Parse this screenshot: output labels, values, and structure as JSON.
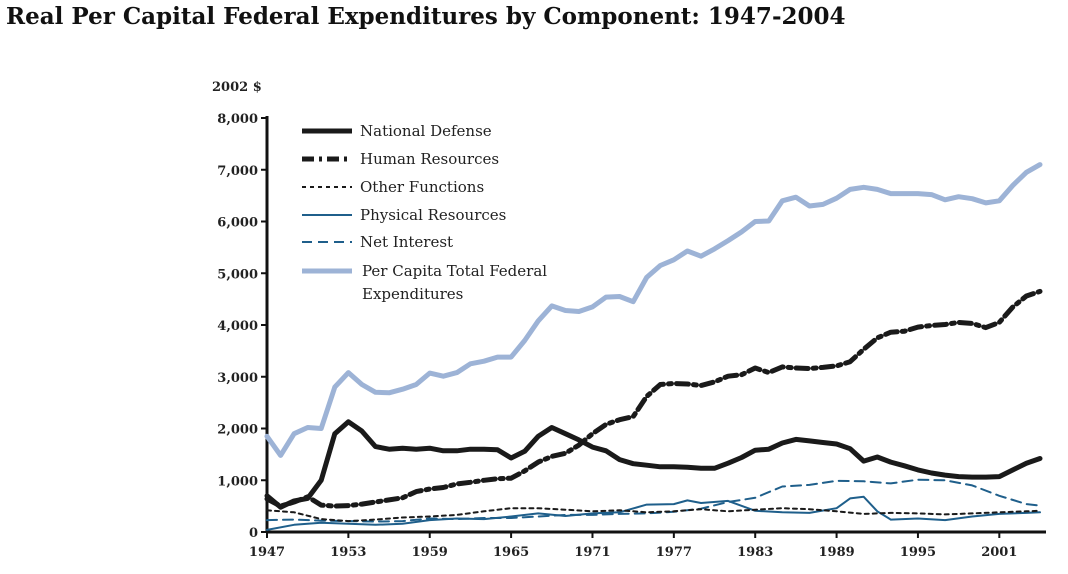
{
  "chart_data": {
    "type": "line",
    "title": "Real Per Capital Federal Expenditures by Component: 1947-2004",
    "y_unit": "2002 $",
    "xlim": [
      1947,
      2004
    ],
    "ylim": [
      0,
      8000
    ],
    "x_ticks": [
      1947,
      1953,
      1959,
      1965,
      1971,
      1977,
      1983,
      1989,
      1995,
      2001
    ],
    "y_ticks": [
      0,
      1000,
      2000,
      3000,
      4000,
      5000,
      6000,
      7000,
      8000
    ],
    "y_tick_labels": [
      "0",
      "1,000",
      "2,000",
      "3,000",
      "4,000",
      "5,000",
      "6,000",
      "7,000",
      "8,000"
    ],
    "grid": false,
    "legend_position": "top-left",
    "series": [
      {
        "name": "National Defense",
        "color": "#1a1a1a",
        "style": "solid-thick",
        "x": [
          1947,
          1948,
          1949,
          1950,
          1951,
          1952,
          1953,
          1954,
          1955,
          1956,
          1957,
          1958,
          1959,
          1960,
          1961,
          1962,
          1963,
          1964,
          1965,
          1966,
          1967,
          1968,
          1969,
          1970,
          1971,
          1972,
          1973,
          1974,
          1975,
          1976,
          1977,
          1978,
          1979,
          1980,
          1981,
          1982,
          1983,
          1984,
          1985,
          1986,
          1987,
          1988,
          1989,
          1990,
          1991,
          1992,
          1993,
          1994,
          1995,
          1996,
          1997,
          1998,
          1999,
          2000,
          2001,
          2002,
          2003,
          2004
        ],
        "values": [
          700,
          480,
          600,
          650,
          1000,
          1900,
          2130,
          1950,
          1650,
          1600,
          1620,
          1600,
          1620,
          1570,
          1570,
          1600,
          1600,
          1590,
          1430,
          1560,
          1850,
          2020,
          1900,
          1780,
          1640,
          1570,
          1400,
          1320,
          1290,
          1260,
          1260,
          1250,
          1230,
          1230,
          1330,
          1440,
          1580,
          1600,
          1720,
          1790,
          1760,
          1730,
          1700,
          1610,
          1370,
          1450,
          1350,
          1280,
          1200,
          1140,
          1100,
          1070,
          1060,
          1060,
          1070,
          1200,
          1330,
          1420
        ]
      },
      {
        "name": "Human Resources",
        "color": "#1a1a1a",
        "style": "dash-dot-thick",
        "x": [
          1947,
          1948,
          1949,
          1950,
          1951,
          1952,
          1953,
          1954,
          1955,
          1956,
          1957,
          1958,
          1959,
          1960,
          1961,
          1962,
          1963,
          1964,
          1965,
          1966,
          1967,
          1968,
          1969,
          1970,
          1971,
          1972,
          1973,
          1974,
          1975,
          1976,
          1977,
          1978,
          1979,
          1980,
          1981,
          1982,
          1983,
          1984,
          1985,
          1986,
          1987,
          1988,
          1989,
          1990,
          1991,
          1992,
          1993,
          1994,
          1995,
          1996,
          1997,
          1998,
          1999,
          2000,
          2001,
          2002,
          2003,
          2004
        ],
        "values": [
          640,
          500,
          580,
          680,
          520,
          500,
          510,
          540,
          580,
          620,
          660,
          780,
          830,
          860,
          930,
          960,
          1000,
          1030,
          1040,
          1180,
          1350,
          1460,
          1520,
          1680,
          1900,
          2080,
          2170,
          2230,
          2620,
          2850,
          2870,
          2860,
          2830,
          2900,
          3010,
          3040,
          3170,
          3080,
          3190,
          3170,
          3160,
          3180,
          3210,
          3290,
          3530,
          3750,
          3860,
          3880,
          3960,
          3990,
          4010,
          4050,
          4030,
          3950,
          4050,
          4350,
          4560,
          4650
        ]
      },
      {
        "name": "Other Functions",
        "color": "#1a1a1a",
        "style": "dotted",
        "x": [
          1947,
          1949,
          1951,
          1953,
          1955,
          1957,
          1959,
          1961,
          1963,
          1965,
          1967,
          1969,
          1971,
          1973,
          1975,
          1977,
          1979,
          1981,
          1983,
          1985,
          1987,
          1989,
          1991,
          1993,
          1995,
          1997,
          1999,
          2001,
          2003,
          2004
        ],
        "values": [
          420,
          380,
          250,
          210,
          240,
          280,
          300,
          330,
          400,
          460,
          460,
          430,
          400,
          420,
          380,
          400,
          440,
          400,
          430,
          460,
          440,
          400,
          350,
          370,
          360,
          340,
          360,
          380,
          400,
          410
        ]
      },
      {
        "name": "Physical Resources",
        "color": "#1f5f8b",
        "style": "solid-thin",
        "x": [
          1947,
          1949,
          1951,
          1953,
          1955,
          1957,
          1959,
          1961,
          1963,
          1965,
          1967,
          1969,
          1971,
          1973,
          1975,
          1977,
          1978,
          1979,
          1981,
          1983,
          1985,
          1987,
          1989,
          1990,
          1991,
          1992,
          1993,
          1995,
          1997,
          1999,
          2001,
          2003,
          2004
        ],
        "values": [
          40,
          140,
          180,
          160,
          140,
          160,
          230,
          260,
          250,
          300,
          360,
          310,
          360,
          380,
          530,
          540,
          610,
          560,
          600,
          410,
          380,
          370,
          460,
          650,
          680,
          400,
          240,
          260,
          230,
          300,
          350,
          370,
          380
        ]
      },
      {
        "name": "Net Interest",
        "color": "#1f5f8b",
        "style": "dashed",
        "x": [
          1947,
          1949,
          1951,
          1953,
          1955,
          1957,
          1959,
          1961,
          1963,
          1965,
          1967,
          1969,
          1971,
          1973,
          1975,
          1977,
          1979,
          1981,
          1983,
          1985,
          1987,
          1989,
          1991,
          1993,
          1995,
          1997,
          1999,
          2001,
          2003,
          2004
        ],
        "values": [
          230,
          240,
          220,
          210,
          200,
          210,
          260,
          250,
          270,
          270,
          300,
          330,
          330,
          350,
          360,
          390,
          450,
          580,
          660,
          880,
          910,
          990,
          980,
          940,
          1010,
          1000,
          900,
          700,
          540,
          510
        ]
      },
      {
        "name": "Per Capita Total Federal Expenditures",
        "color": "#9db3d6",
        "style": "solid-thick",
        "x": [
          1947,
          1948,
          1949,
          1950,
          1951,
          1952,
          1953,
          1954,
          1955,
          1956,
          1957,
          1958,
          1959,
          1960,
          1961,
          1962,
          1963,
          1964,
          1965,
          1966,
          1967,
          1968,
          1969,
          1970,
          1971,
          1972,
          1973,
          1974,
          1975,
          1976,
          1977,
          1978,
          1979,
          1980,
          1981,
          1982,
          1983,
          1984,
          1985,
          1986,
          1987,
          1988,
          1989,
          1990,
          1991,
          1992,
          1993,
          1994,
          1995,
          1996,
          1997,
          1998,
          1999,
          2000,
          2001,
          2002,
          2003,
          2004
        ],
        "values": [
          1850,
          1480,
          1900,
          2020,
          2000,
          2800,
          3080,
          2850,
          2700,
          2690,
          2760,
          2850,
          3070,
          3010,
          3080,
          3250,
          3300,
          3380,
          3380,
          3700,
          4080,
          4370,
          4280,
          4260,
          4350,
          4540,
          4550,
          4450,
          4920,
          5150,
          5260,
          5430,
          5330,
          5470,
          5630,
          5800,
          6000,
          6010,
          6400,
          6470,
          6300,
          6330,
          6450,
          6620,
          6660,
          6620,
          6540,
          6540,
          6540,
          6520,
          6420,
          6480,
          6440,
          6360,
          6400,
          6700,
          6950,
          7100
        ]
      }
    ]
  }
}
